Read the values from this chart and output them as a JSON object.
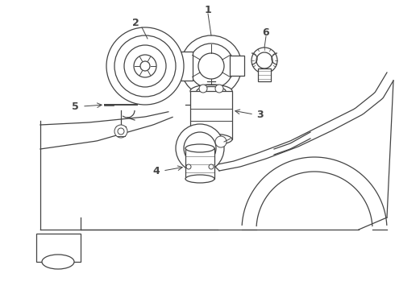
{
  "bg_color": "#ffffff",
  "line_color": "#444444",
  "label_color": "#111111",
  "figsize": [
    4.9,
    3.6
  ],
  "dpi": 100,
  "lw": 0.9
}
